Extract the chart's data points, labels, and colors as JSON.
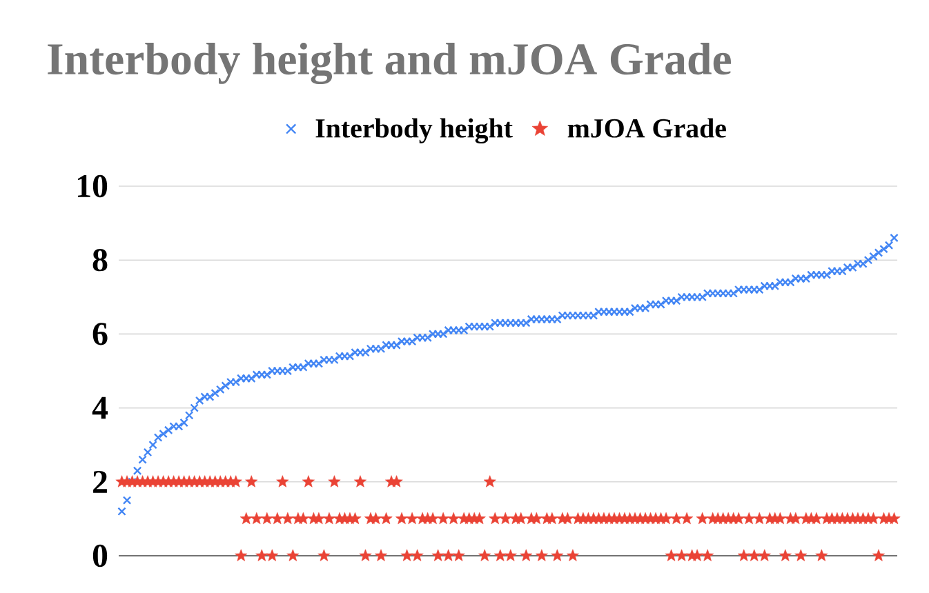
{
  "chart_data": {
    "type": "scatter",
    "title": "Interbody height and mJOA Grade",
    "categories": [
      null,
      null,
      null,
      null,
      null,
      null,
      null,
      null,
      null,
      null,
      null,
      null,
      null,
      null,
      null,
      null,
      null,
      null,
      null,
      null,
      null,
      null,
      null,
      null,
      null,
      null,
      null,
      null,
      null,
      null,
      null,
      null,
      null,
      null,
      null,
      null,
      null,
      null,
      null,
      null,
      null,
      null,
      null,
      null,
      null,
      null,
      null,
      null,
      null,
      null,
      null,
      null,
      null,
      null,
      null,
      null,
      null,
      null,
      null,
      null,
      null,
      null,
      null,
      null,
      null,
      null,
      null,
      null,
      null,
      null,
      null,
      null,
      null,
      null,
      null,
      null,
      null,
      null,
      null,
      null,
      null,
      null,
      null,
      null,
      null,
      null,
      null,
      null,
      null,
      null,
      null,
      null,
      null,
      null,
      null,
      null,
      null,
      null,
      null,
      null,
      null,
      null,
      null,
      null,
      null,
      null,
      null,
      null,
      null,
      null,
      null,
      null,
      null,
      null,
      null,
      null,
      null,
      null,
      null,
      null,
      null,
      null,
      null,
      null,
      null,
      null,
      null,
      null,
      null,
      null,
      null,
      null,
      null,
      null,
      null,
      null,
      null,
      null,
      null,
      null,
      null,
      null,
      null,
      null,
      null,
      null,
      null,
      null,
      null,
      null
    ],
    "series": [
      {
        "name": "Interbody height",
        "color": "#4285f4",
        "marker": "cross",
        "values": [
          1.2,
          1.5,
          2.0,
          2.3,
          2.6,
          2.8,
          3.0,
          3.2,
          3.3,
          3.4,
          3.5,
          3.5,
          3.6,
          3.8,
          4.0,
          4.2,
          4.3,
          4.3,
          4.4,
          4.5,
          4.6,
          4.7,
          4.7,
          4.8,
          4.8,
          4.8,
          4.9,
          4.9,
          4.9,
          5.0,
          5.0,
          5.0,
          5.0,
          5.1,
          5.1,
          5.1,
          5.2,
          5.2,
          5.2,
          5.3,
          5.3,
          5.3,
          5.4,
          5.4,
          5.4,
          5.5,
          5.5,
          5.5,
          5.6,
          5.6,
          5.6,
          5.7,
          5.7,
          5.7,
          5.8,
          5.8,
          5.8,
          5.9,
          5.9,
          5.9,
          6.0,
          6.0,
          6.0,
          6.1,
          6.1,
          6.1,
          6.1,
          6.2,
          6.2,
          6.2,
          6.2,
          6.2,
          6.3,
          6.3,
          6.3,
          6.3,
          6.3,
          6.3,
          6.3,
          6.4,
          6.4,
          6.4,
          6.4,
          6.4,
          6.4,
          6.5,
          6.5,
          6.5,
          6.5,
          6.5,
          6.5,
          6.5,
          6.6,
          6.6,
          6.6,
          6.6,
          6.6,
          6.6,
          6.6,
          6.7,
          6.7,
          6.7,
          6.8,
          6.8,
          6.8,
          6.9,
          6.9,
          6.9,
          7.0,
          7.0,
          7.0,
          7.0,
          7.0,
          7.1,
          7.1,
          7.1,
          7.1,
          7.1,
          7.1,
          7.2,
          7.2,
          7.2,
          7.2,
          7.2,
          7.3,
          7.3,
          7.3,
          7.4,
          7.4,
          7.4,
          7.5,
          7.5,
          7.5,
          7.6,
          7.6,
          7.6,
          7.6,
          7.7,
          7.7,
          7.7,
          7.8,
          7.8,
          7.9,
          7.9,
          8.0,
          8.1,
          8.2,
          8.3,
          8.4,
          8.6
        ]
      },
      {
        "name": "mJOA Grade",
        "color": "#ea4335",
        "marker": "star",
        "values": [
          2,
          2,
          2,
          2,
          2,
          2,
          2,
          2,
          2,
          2,
          2,
          2,
          2,
          2,
          2,
          2,
          2,
          2,
          2,
          2,
          2,
          2,
          2,
          0,
          1,
          2,
          1,
          0,
          1,
          0,
          1,
          2,
          1,
          0,
          1,
          1,
          2,
          1,
          1,
          0,
          1,
          2,
          1,
          1,
          1,
          1,
          2,
          0,
          1,
          1,
          0,
          1,
          2,
          2,
          1,
          0,
          1,
          0,
          1,
          1,
          1,
          0,
          1,
          0,
          1,
          0,
          1,
          1,
          1,
          1,
          0,
          2,
          1,
          0,
          1,
          0,
          1,
          1,
          0,
          1,
          1,
          0,
          1,
          1,
          0,
          1,
          1,
          0,
          1,
          1,
          1,
          1,
          1,
          1,
          1,
          1,
          1,
          1,
          1,
          1,
          1,
          1,
          1,
          1,
          1,
          1,
          0,
          1,
          0,
          1,
          0,
          0,
          1,
          0,
          1,
          1,
          1,
          1,
          1,
          1,
          0,
          1,
          0,
          1,
          0,
          1,
          1,
          1,
          0,
          1,
          1,
          0,
          1,
          1,
          1,
          0,
          1,
          1,
          1,
          1,
          1,
          1,
          1,
          1,
          1,
          1,
          0,
          1,
          1,
          1
        ]
      }
    ],
    "ylim": [
      0,
      10
    ],
    "yticks": [
      0,
      2,
      4,
      6,
      8,
      10
    ],
    "grid": "y",
    "legend": "top"
  }
}
